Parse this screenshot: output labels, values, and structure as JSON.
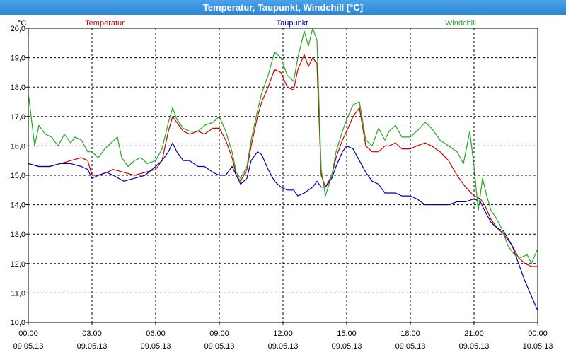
{
  "window": {
    "title": "Temperatur, Taupunkt, Windchill [°C]"
  },
  "chart_data": {
    "type": "line",
    "title": "Temperatur, Taupunkt, Windchill [°C]",
    "ylabel": "°C",
    "ylim": [
      10.0,
      20.0
    ],
    "xlim": [
      0,
      24
    ],
    "grid": true,
    "legend_placement": "top",
    "y_ticks": [
      "10,0",
      "11,0",
      "12,0",
      "13,0",
      "14,0",
      "15,0",
      "16,0",
      "17,0",
      "18,0",
      "19,0",
      "20,0"
    ],
    "x_ticks": [
      {
        "time": "00:00",
        "date": "09.05.13"
      },
      {
        "time": "03:00",
        "date": "09.05.13"
      },
      {
        "time": "06:00",
        "date": "09.05.13"
      },
      {
        "time": "09:00",
        "date": "09.05.13"
      },
      {
        "time": "12:00",
        "date": "09.05.13"
      },
      {
        "time": "15:00",
        "date": "09.05.13"
      },
      {
        "time": "18:00",
        "date": "09.05.13"
      },
      {
        "time": "21:00",
        "date": "09.05.13"
      },
      {
        "time": "00:00",
        "date": "10.05.13"
      }
    ],
    "series": [
      {
        "name": "Temperatur",
        "color": "#cc0000",
        "points": [
          [
            0.0,
            15.4
          ],
          [
            0.5,
            15.3
          ],
          [
            1.0,
            15.3
          ],
          [
            1.5,
            15.4
          ],
          [
            2.0,
            15.5
          ],
          [
            2.5,
            15.6
          ],
          [
            2.8,
            15.5
          ],
          [
            3.0,
            15.0
          ],
          [
            3.3,
            15.0
          ],
          [
            3.7,
            15.1
          ],
          [
            4.0,
            15.2
          ],
          [
            4.5,
            15.1
          ],
          [
            5.0,
            15.0
          ],
          [
            5.5,
            15.1
          ],
          [
            6.0,
            15.2
          ],
          [
            6.3,
            15.5
          ],
          [
            6.6,
            16.5
          ],
          [
            6.8,
            17.0
          ],
          [
            7.0,
            16.8
          ],
          [
            7.3,
            16.5
          ],
          [
            7.6,
            16.4
          ],
          [
            8.0,
            16.5
          ],
          [
            8.3,
            16.4
          ],
          [
            8.7,
            16.6
          ],
          [
            9.0,
            16.6
          ],
          [
            9.3,
            16.2
          ],
          [
            9.6,
            15.6
          ],
          [
            9.8,
            15.0
          ],
          [
            10.0,
            14.8
          ],
          [
            10.3,
            15.2
          ],
          [
            10.5,
            16.0
          ],
          [
            10.8,
            17.0
          ],
          [
            11.0,
            17.5
          ],
          [
            11.3,
            18.0
          ],
          [
            11.6,
            18.6
          ],
          [
            11.9,
            18.5
          ],
          [
            12.2,
            18.0
          ],
          [
            12.5,
            17.9
          ],
          [
            12.7,
            18.6
          ],
          [
            13.0,
            19.1
          ],
          [
            13.2,
            18.7
          ],
          [
            13.4,
            19.0
          ],
          [
            13.6,
            18.8
          ],
          [
            13.8,
            15.0
          ],
          [
            14.0,
            14.6
          ],
          [
            14.3,
            15.0
          ],
          [
            14.5,
            15.6
          ],
          [
            14.8,
            16.2
          ],
          [
            15.0,
            16.5
          ],
          [
            15.3,
            17.0
          ],
          [
            15.6,
            17.3
          ],
          [
            15.9,
            16.0
          ],
          [
            16.2,
            15.8
          ],
          [
            16.5,
            15.8
          ],
          [
            16.8,
            16.0
          ],
          [
            17.0,
            16.0
          ],
          [
            17.3,
            16.1
          ],
          [
            17.6,
            15.9
          ],
          [
            18.0,
            15.9
          ],
          [
            18.3,
            16.0
          ],
          [
            18.7,
            16.1
          ],
          [
            19.0,
            16.0
          ],
          [
            19.4,
            15.8
          ],
          [
            19.8,
            15.5
          ],
          [
            20.2,
            15.0
          ],
          [
            20.6,
            14.6
          ],
          [
            21.0,
            14.3
          ],
          [
            21.3,
            14.2
          ],
          [
            21.5,
            14.0
          ],
          [
            21.8,
            13.5
          ],
          [
            22.1,
            13.2
          ],
          [
            22.4,
            13.0
          ],
          [
            22.8,
            12.6
          ],
          [
            23.1,
            12.2
          ],
          [
            23.4,
            12.0
          ],
          [
            23.7,
            11.9
          ],
          [
            24.0,
            11.9
          ]
        ]
      },
      {
        "name": "Taupunkt",
        "color": "#0000aa",
        "points": [
          [
            0.0,
            15.4
          ],
          [
            0.5,
            15.3
          ],
          [
            1.0,
            15.3
          ],
          [
            1.5,
            15.4
          ],
          [
            2.0,
            15.4
          ],
          [
            2.5,
            15.3
          ],
          [
            2.8,
            15.2
          ],
          [
            3.0,
            14.9
          ],
          [
            3.3,
            15.0
          ],
          [
            3.7,
            15.1
          ],
          [
            4.0,
            15.0
          ],
          [
            4.5,
            14.8
          ],
          [
            5.0,
            14.9
          ],
          [
            5.5,
            15.0
          ],
          [
            6.0,
            15.3
          ],
          [
            6.3,
            15.5
          ],
          [
            6.6,
            15.8
          ],
          [
            6.8,
            16.1
          ],
          [
            7.0,
            15.8
          ],
          [
            7.3,
            15.5
          ],
          [
            7.6,
            15.5
          ],
          [
            8.0,
            15.3
          ],
          [
            8.3,
            15.3
          ],
          [
            8.7,
            15.1
          ],
          [
            9.0,
            15.0
          ],
          [
            9.3,
            15.0
          ],
          [
            9.6,
            15.3
          ],
          [
            9.8,
            15.0
          ],
          [
            10.0,
            14.7
          ],
          [
            10.3,
            14.9
          ],
          [
            10.5,
            15.5
          ],
          [
            10.8,
            15.8
          ],
          [
            11.0,
            15.7
          ],
          [
            11.3,
            15.2
          ],
          [
            11.6,
            14.8
          ],
          [
            11.9,
            14.6
          ],
          [
            12.2,
            14.5
          ],
          [
            12.5,
            14.5
          ],
          [
            12.7,
            14.3
          ],
          [
            13.0,
            14.4
          ],
          [
            13.2,
            14.5
          ],
          [
            13.4,
            14.6
          ],
          [
            13.6,
            14.8
          ],
          [
            13.8,
            14.6
          ],
          [
            14.0,
            14.6
          ],
          [
            14.3,
            14.9
          ],
          [
            14.5,
            15.3
          ],
          [
            14.8,
            15.8
          ],
          [
            15.0,
            16.0
          ],
          [
            15.3,
            15.9
          ],
          [
            15.6,
            15.5
          ],
          [
            15.9,
            15.1
          ],
          [
            16.2,
            14.8
          ],
          [
            16.5,
            14.7
          ],
          [
            16.8,
            14.4
          ],
          [
            17.0,
            14.4
          ],
          [
            17.3,
            14.4
          ],
          [
            17.6,
            14.3
          ],
          [
            18.0,
            14.3
          ],
          [
            18.3,
            14.2
          ],
          [
            18.7,
            14.0
          ],
          [
            19.0,
            14.0
          ],
          [
            19.4,
            14.0
          ],
          [
            19.8,
            14.0
          ],
          [
            20.2,
            14.1
          ],
          [
            20.6,
            14.1
          ],
          [
            21.0,
            14.2
          ],
          [
            21.3,
            14.1
          ],
          [
            21.5,
            13.8
          ],
          [
            21.8,
            13.4
          ],
          [
            22.1,
            13.2
          ],
          [
            22.4,
            13.1
          ],
          [
            22.8,
            12.6
          ],
          [
            23.1,
            12.0
          ],
          [
            23.4,
            11.4
          ],
          [
            23.7,
            10.9
          ],
          [
            24.0,
            10.4
          ]
        ]
      },
      {
        "name": "Windchill",
        "color": "#22aa22",
        "points": [
          [
            0.0,
            17.8
          ],
          [
            0.3,
            16.0
          ],
          [
            0.5,
            16.7
          ],
          [
            0.8,
            16.4
          ],
          [
            1.1,
            16.3
          ],
          [
            1.4,
            16.0
          ],
          [
            1.7,
            16.4
          ],
          [
            2.0,
            16.1
          ],
          [
            2.2,
            16.3
          ],
          [
            2.5,
            16.2
          ],
          [
            2.8,
            15.8
          ],
          [
            3.0,
            15.8
          ],
          [
            3.3,
            15.6
          ],
          [
            3.6,
            15.9
          ],
          [
            3.9,
            16.1
          ],
          [
            4.2,
            16.3
          ],
          [
            4.4,
            15.6
          ],
          [
            4.7,
            15.3
          ],
          [
            5.0,
            15.5
          ],
          [
            5.3,
            15.6
          ],
          [
            5.6,
            15.4
          ],
          [
            6.0,
            15.5
          ],
          [
            6.3,
            15.9
          ],
          [
            6.6,
            16.8
          ],
          [
            6.8,
            17.3
          ],
          [
            7.0,
            16.9
          ],
          [
            7.3,
            16.6
          ],
          [
            7.6,
            16.5
          ],
          [
            8.0,
            16.5
          ],
          [
            8.3,
            16.7
          ],
          [
            8.7,
            16.8
          ],
          [
            9.0,
            17.0
          ],
          [
            9.3,
            16.5
          ],
          [
            9.6,
            15.8
          ],
          [
            9.8,
            15.1
          ],
          [
            10.0,
            14.9
          ],
          [
            10.3,
            15.3
          ],
          [
            10.5,
            16.2
          ],
          [
            10.8,
            17.2
          ],
          [
            11.0,
            17.8
          ],
          [
            11.3,
            18.4
          ],
          [
            11.6,
            19.2
          ],
          [
            11.9,
            19.0
          ],
          [
            12.2,
            18.4
          ],
          [
            12.5,
            18.2
          ],
          [
            12.7,
            19.0
          ],
          [
            13.0,
            19.9
          ],
          [
            13.2,
            19.4
          ],
          [
            13.4,
            20.0
          ],
          [
            13.6,
            19.6
          ],
          [
            13.8,
            15.2
          ],
          [
            14.0,
            14.3
          ],
          [
            14.3,
            15.0
          ],
          [
            14.5,
            15.8
          ],
          [
            14.8,
            16.5
          ],
          [
            15.0,
            16.9
          ],
          [
            15.3,
            17.4
          ],
          [
            15.6,
            17.5
          ],
          [
            15.9,
            16.2
          ],
          [
            16.2,
            16.0
          ],
          [
            16.5,
            16.6
          ],
          [
            16.8,
            16.2
          ],
          [
            17.0,
            16.5
          ],
          [
            17.3,
            16.7
          ],
          [
            17.6,
            16.3
          ],
          [
            18.0,
            16.3
          ],
          [
            18.3,
            16.5
          ],
          [
            18.7,
            16.8
          ],
          [
            19.0,
            16.6
          ],
          [
            19.4,
            16.2
          ],
          [
            19.8,
            16.0
          ],
          [
            20.2,
            15.8
          ],
          [
            20.5,
            15.4
          ],
          [
            20.8,
            16.5
          ],
          [
            21.0,
            15.3
          ],
          [
            21.2,
            13.8
          ],
          [
            21.4,
            14.9
          ],
          [
            21.6,
            14.3
          ],
          [
            21.8,
            13.8
          ],
          [
            22.0,
            13.6
          ],
          [
            22.3,
            13.2
          ],
          [
            22.6,
            12.6
          ],
          [
            22.9,
            12.3
          ],
          [
            23.2,
            12.2
          ],
          [
            23.5,
            12.3
          ],
          [
            23.7,
            12.0
          ],
          [
            24.0,
            12.5
          ]
        ]
      }
    ]
  }
}
